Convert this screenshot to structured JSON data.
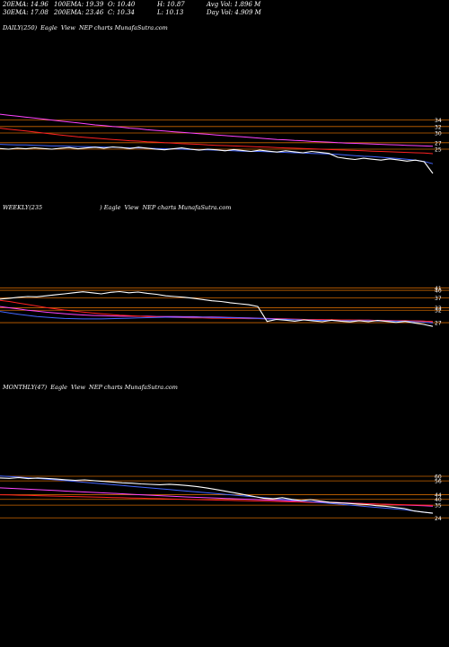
{
  "header": {
    "ema20": "20EMA: 14.96",
    "ema100": "100EMA: 19.39",
    "open": "O: 10.40",
    "high": "H: 10.87",
    "avg_vol": "Avg Vol: 1.896  M",
    "ema30": "30EMA: 17.08",
    "ema200": "200EMA: 23.46",
    "close": "C: 10.34",
    "low": "L: 10.13",
    "day_vol": "Day Vol: 4.909 M"
  },
  "panels": {
    "daily": {
      "title": "DAILY(250)",
      "t1": "Eagle",
      "t2": "View",
      "t3": "NEP charts MunafaSutra.com"
    },
    "weekly": {
      "title": "WEEKLY(235",
      "t1": ") Eagle",
      "t2": "View",
      "t3": "NEP charts MunafaSutra.com"
    },
    "monthly": {
      "title": "MONTHLY(47)",
      "t1": "Eagle",
      "t2": "View",
      "t3": "NEP charts MunafaSutra.com"
    }
  },
  "colors": {
    "background": "#000000",
    "price": "#ffffff",
    "ema_fast": "#4466ff",
    "ema_slow": "#ff2222",
    "ema_mid": "#ff44ff",
    "level_lines": "#cc6600"
  },
  "chart_data": [
    {
      "type": "line",
      "panel": "daily",
      "levels": [
        34,
        32,
        30,
        27,
        25
      ],
      "price": [
        25.2,
        25.0,
        25.3,
        25.1,
        25.4,
        25.2,
        25.0,
        25.3,
        25.5,
        25.1,
        25.4,
        25.6,
        25.3,
        25.7,
        25.5,
        25.2,
        25.6,
        25.3,
        25.0,
        24.8,
        25.1,
        25.4,
        25.0,
        24.7,
        25.0,
        24.8,
        24.5,
        24.9,
        24.6,
        24.3,
        24.7,
        24.4,
        24.1,
        24.5,
        24.2,
        23.9,
        24.3,
        24.0,
        23.7,
        22.5,
        22.1,
        21.8,
        22.2,
        21.9,
        21.6,
        22.0,
        21.7,
        21.3,
        21.6,
        21.1,
        17.5
      ],
      "ema_fast": [
        26.5,
        26.4,
        26.3,
        26.3,
        26.2,
        26.1,
        26.0,
        26.0,
        25.9,
        25.8,
        25.8,
        25.7,
        25.6,
        25.6,
        25.5,
        25.4,
        25.4,
        25.3,
        25.2,
        25.1,
        25.1,
        25.0,
        24.9,
        24.8,
        24.8,
        24.7,
        24.6,
        24.5,
        24.4,
        24.3,
        24.3,
        24.2,
        24.1,
        24.0,
        23.9,
        23.8,
        23.7,
        23.6,
        23.5,
        23.4,
        23.2,
        23.0,
        22.8,
        22.7,
        22.5,
        22.3,
        22.1,
        21.9,
        21.6,
        21.2,
        20.5
      ],
      "ema_slow": [
        31.5,
        31.2,
        30.9,
        30.6,
        30.3,
        30.0,
        29.7,
        29.4,
        29.1,
        28.8,
        28.6,
        28.4,
        28.2,
        28.0,
        27.8,
        27.6,
        27.5,
        27.3,
        27.2,
        27.0,
        26.9,
        26.7,
        26.6,
        26.5,
        26.3,
        26.2,
        26.1,
        26.0,
        25.9,
        25.8,
        25.7,
        25.6,
        25.5,
        25.4,
        25.3,
        25.2,
        25.1,
        25.0,
        24.9,
        24.8,
        24.7,
        24.6,
        24.5,
        24.4,
        24.3,
        24.2,
        24.1,
        24.0,
        23.9,
        23.8,
        23.6
      ],
      "ema_mid": [
        35.8,
        35.5,
        35.2,
        34.9,
        34.6,
        34.3,
        34.0,
        33.7,
        33.4,
        33.1,
        32.8,
        32.5,
        32.3,
        32.0,
        31.8,
        31.5,
        31.3,
        31.0,
        30.8,
        30.6,
        30.4,
        30.2,
        30.0,
        29.8,
        29.6,
        29.4,
        29.2,
        29.0,
        28.8,
        28.6,
        28.4,
        28.2,
        28.0,
        27.9,
        27.7,
        27.6,
        27.4,
        27.3,
        27.2,
        27.0,
        26.9,
        26.8,
        26.7,
        26.6,
        26.5,
        26.4,
        26.3,
        26.2,
        26.1,
        26.0,
        25.9
      ],
      "ylim": [
        10,
        60
      ]
    },
    {
      "type": "line",
      "panel": "weekly",
      "levels": [
        41,
        40,
        37,
        33,
        32,
        27
      ],
      "price": [
        36.5,
        36.8,
        37.2,
        37.5,
        37.4,
        37.8,
        38.2,
        38.6,
        39.0,
        39.4,
        39.0,
        38.6,
        39.2,
        39.5,
        39.0,
        39.3,
        38.8,
        38.4,
        37.8,
        37.5,
        37.2,
        36.8,
        36.3,
        35.8,
        35.5,
        35.0,
        34.6,
        34.2,
        33.5,
        27.5,
        28.3,
        28.0,
        27.6,
        28.1,
        27.7,
        27.4,
        28.0,
        27.6,
        27.3,
        27.8,
        27.4,
        27.9,
        27.5,
        27.1,
        27.5,
        26.9,
        26.3,
        25.5
      ],
      "ema_fast": [
        31.5,
        30.9,
        30.4,
        29.9,
        29.5,
        29.2,
        28.9,
        28.7,
        28.6,
        28.5,
        28.5,
        28.5,
        28.6,
        28.7,
        28.8,
        28.9,
        29.0,
        29.1,
        29.2,
        29.2,
        29.2,
        29.2,
        29.2,
        29.1,
        29.0,
        29.0,
        28.9,
        28.8,
        28.7,
        28.5,
        28.4,
        28.3,
        28.2,
        28.1,
        28.0,
        27.9,
        27.9,
        27.8,
        27.8,
        27.8,
        27.8,
        27.7,
        27.7,
        27.6,
        27.6,
        27.4,
        27.2,
        26.9
      ],
      "ema_slow": [
        36.0,
        35.5,
        34.9,
        34.3,
        33.7,
        33.1,
        32.6,
        32.1,
        31.7,
        31.3,
        30.9,
        30.6,
        30.3,
        30.0,
        29.8,
        29.6,
        29.4,
        29.3,
        29.2,
        29.1,
        29.0,
        28.9,
        28.9,
        28.8,
        28.8,
        28.7,
        28.7,
        28.6,
        28.6,
        28.5,
        28.5,
        28.4,
        28.4,
        28.3,
        28.3,
        28.2,
        28.2,
        28.1,
        28.1,
        28.0,
        28.0,
        27.9,
        27.9,
        27.8,
        27.8,
        27.7,
        27.6,
        27.5
      ],
      "ema_mid": [
        33.5,
        33.0,
        32.5,
        32.0,
        31.6,
        31.2,
        30.9,
        30.6,
        30.3,
        30.1,
        29.9,
        29.8,
        29.7,
        29.6,
        29.6,
        29.6,
        29.6,
        29.5,
        29.5,
        29.5,
        29.4,
        29.4,
        29.3,
        29.3,
        29.2,
        29.1,
        29.0,
        28.9,
        28.8,
        28.7,
        28.6,
        28.5,
        28.4,
        28.3,
        28.2,
        28.2,
        28.1,
        28.1,
        28.0,
        28.0,
        28.0,
        27.9,
        27.9,
        27.8,
        27.8,
        27.7,
        27.6,
        27.4
      ],
      "ylim": [
        5,
        70
      ]
    },
    {
      "type": "line",
      "panel": "monthly",
      "levels": [
        60,
        56,
        44,
        40,
        35,
        24
      ],
      "price": [
        58.5,
        58.2,
        58.8,
        58.0,
        58.5,
        58.1,
        57.6,
        57.0,
        56.5,
        56.9,
        56.2,
        55.6,
        55.0,
        54.3,
        54.0,
        53.4,
        53.0,
        52.7,
        53.1,
        52.5,
        51.9,
        51.0,
        49.8,
        48.5,
        47.0,
        45.5,
        44.0,
        42.5,
        41.0,
        40.5,
        41.5,
        40.0,
        39.0,
        39.8,
        38.5,
        37.5,
        37.0,
        36.5,
        36.0,
        35.5,
        34.6,
        34.0,
        33.0,
        32.0,
        30.0,
        29.0,
        28.0
      ],
      "ema_fast": [
        60.2,
        59.8,
        59.3,
        58.7,
        58.1,
        57.5,
        56.9,
        56.2,
        55.5,
        54.8,
        54.1,
        53.4,
        52.7,
        52.0,
        51.3,
        50.6,
        49.9,
        49.2,
        48.5,
        47.8,
        47.1,
        46.4,
        45.7,
        45.0,
        44.3,
        43.6,
        42.9,
        42.2,
        41.5,
        40.8,
        40.1,
        39.4,
        38.7,
        38.0,
        37.3,
        36.6,
        35.9,
        35.2,
        34.5,
        33.8,
        33.1,
        32.4,
        31.7,
        31.0,
        30.0,
        29.0,
        28.0
      ],
      "ema_slow": [
        44.0,
        43.8,
        43.6,
        43.4,
        43.2,
        43.0,
        42.8,
        42.6,
        42.4,
        42.2,
        42.0,
        41.8,
        41.6,
        41.4,
        41.2,
        41.0,
        40.8,
        40.6,
        40.4,
        40.2,
        40.0,
        39.8,
        39.6,
        39.4,
        39.2,
        39.0,
        38.8,
        38.6,
        38.4,
        38.2,
        38.0,
        37.8,
        37.6,
        37.4,
        37.2,
        37.0,
        36.8,
        36.6,
        36.4,
        36.2,
        36.0,
        35.8,
        35.6,
        35.4,
        35.2,
        35.0,
        34.8
      ],
      "ema_mid": [
        50.0,
        49.6,
        49.2,
        48.8,
        48.4,
        48.0,
        47.6,
        47.2,
        46.8,
        46.4,
        46.0,
        45.6,
        45.2,
        44.8,
        44.4,
        44.0,
        43.6,
        43.2,
        42.8,
        42.4,
        42.0,
        41.7,
        41.4,
        41.1,
        40.8,
        40.5,
        40.2,
        39.9,
        39.6,
        39.3,
        39.0,
        38.7,
        38.4,
        38.1,
        37.8,
        37.5,
        37.2,
        36.9,
        36.6,
        36.3,
        36.0,
        35.7,
        35.4,
        35.1,
        34.8,
        34.5,
        34.2
      ],
      "ylim": [
        -10,
        130
      ]
    }
  ]
}
